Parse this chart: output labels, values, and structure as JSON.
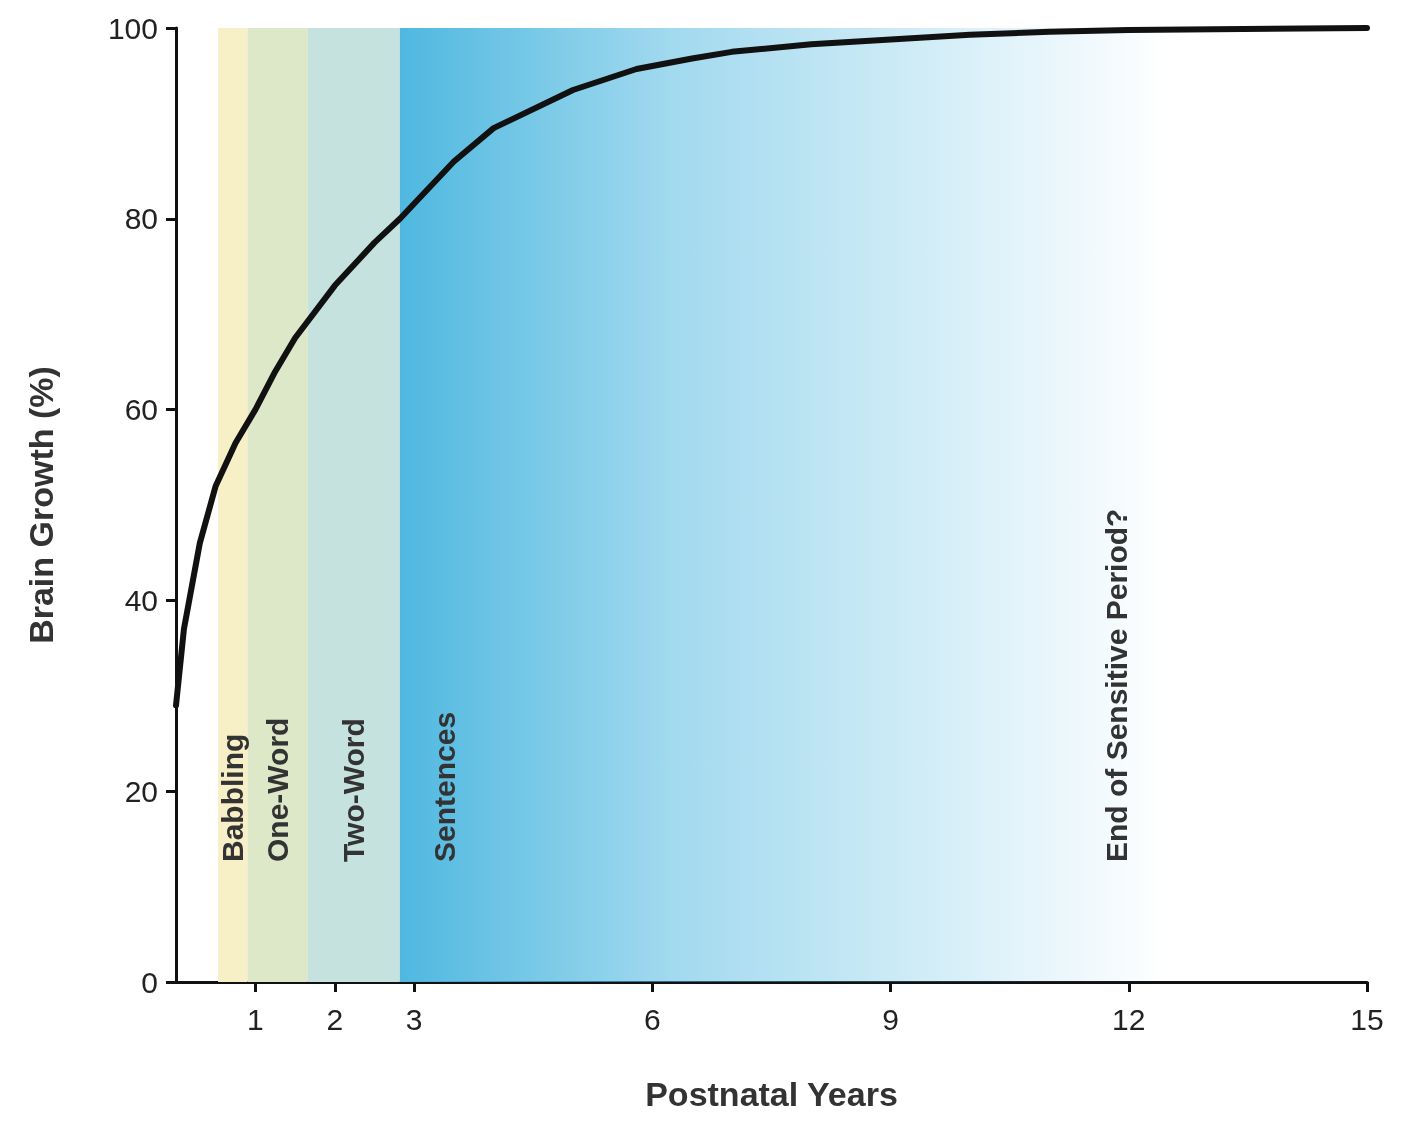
{
  "chart_data": {
    "type": "line",
    "xlabel": "Postnatal Years",
    "ylabel": "Brain Growth (%)",
    "series": [
      {
        "color": "#111111",
        "x": [
          0,
          0.1,
          0.3,
          0.5,
          0.75,
          1,
          1.25,
          1.5,
          2,
          2.5,
          2.82,
          3.5,
          4,
          5,
          5.8,
          6.5,
          7,
          8,
          9,
          10,
          11,
          12,
          15
        ],
        "values": [
          29,
          37,
          46,
          52,
          56.5,
          60,
          64,
          67.5,
          73,
          77.5,
          80,
          86,
          89.5,
          93.5,
          95.7,
          96.8,
          97.5,
          98.3,
          98.8,
          99.3,
          99.6,
          99.8,
          100
        ]
      }
    ],
    "xlim": [
      0,
      15
    ],
    "xticks": [
      1,
      2,
      3,
      6,
      9,
      12,
      15
    ],
    "ylim": [
      0,
      100
    ],
    "yticks": [
      0,
      20,
      40,
      60,
      80,
      100
    ],
    "grid": false,
    "marker": "none",
    "line_style": "solid",
    "bands": [
      {
        "axis": "x",
        "from": 0.53,
        "to": 0.9,
        "label": "Babbling",
        "color": "#f7efc5"
      },
      {
        "axis": "x",
        "from": 0.9,
        "to": 1.66,
        "label": "One-Word",
        "color": "#dde8c8"
      },
      {
        "axis": "x",
        "from": 1.66,
        "to": 2.82,
        "label": "Two-Word",
        "color": "#c6e2de"
      },
      {
        "axis": "x",
        "from": 2.82,
        "to": 12.5,
        "label": "Sentences",
        "color": "#4fb8e0"
      }
    ],
    "annotations": [
      "End of Sensitive Period?"
    ]
  }
}
